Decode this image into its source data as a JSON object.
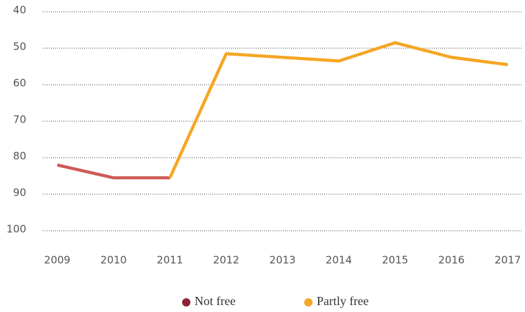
{
  "chart_data": {
    "type": "line",
    "categories": [
      "2009",
      "2010",
      "2011",
      "2012",
      "2013",
      "2014",
      "2015",
      "2016",
      "2017"
    ],
    "series": [
      {
        "name": "Not free",
        "color": "#cd5b56",
        "legend_color": "#8c2335",
        "values": [
          82,
          85.5,
          85.5,
          null,
          null,
          null,
          null,
          null,
          null
        ]
      },
      {
        "name": "Partly free",
        "color": "#f5a623",
        "legend_color": "#f5a623",
        "values": [
          null,
          null,
          85.5,
          51.5,
          52.5,
          53.5,
          48.5,
          52.5,
          54.5
        ]
      }
    ],
    "ylim": [
      40,
      100
    ],
    "y_inverted": true,
    "yticks": [
      40,
      50,
      60,
      70,
      80,
      90,
      100
    ],
    "grid": true
  }
}
